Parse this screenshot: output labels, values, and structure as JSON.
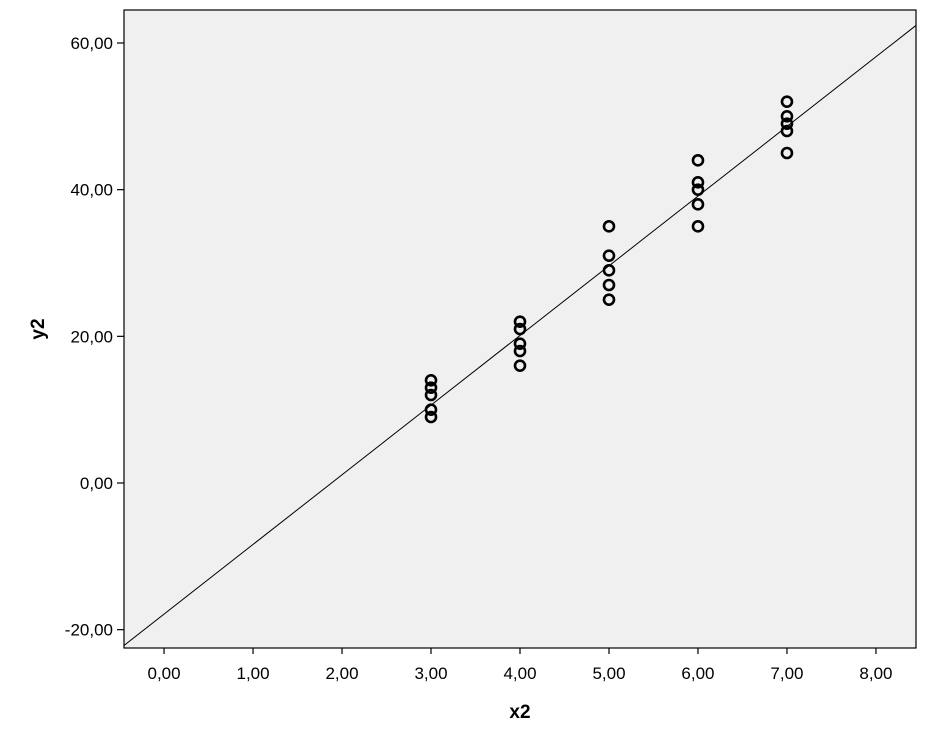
{
  "chart_data": {
    "type": "scatter",
    "title": "",
    "xlabel": "x2",
    "ylabel": "y2",
    "xlim": [
      -0.45,
      8.45
    ],
    "ylim": [
      -22.5,
      64.5
    ],
    "x_ticks": [
      0,
      1,
      2,
      3,
      4,
      5,
      6,
      7,
      8
    ],
    "x_tick_labels": [
      "0,00",
      "1,00",
      "2,00",
      "3,00",
      "4,00",
      "5,00",
      "6,00",
      "7,00",
      "8,00"
    ],
    "y_ticks": [
      -20,
      0,
      20,
      40,
      60
    ],
    "y_tick_labels": [
      "-20,00",
      "0,00",
      "20,00",
      "40,00",
      "60,00"
    ],
    "grid": false,
    "background_color": "#f0f0f0",
    "marker": "open-circle",
    "points": [
      {
        "x": 3,
        "y": 14
      },
      {
        "x": 3,
        "y": 13
      },
      {
        "x": 3,
        "y": 12
      },
      {
        "x": 3,
        "y": 10
      },
      {
        "x": 3,
        "y": 9
      },
      {
        "x": 4,
        "y": 22
      },
      {
        "x": 4,
        "y": 21
      },
      {
        "x": 4,
        "y": 19
      },
      {
        "x": 4,
        "y": 18
      },
      {
        "x": 4,
        "y": 16
      },
      {
        "x": 5,
        "y": 35
      },
      {
        "x": 5,
        "y": 31
      },
      {
        "x": 5,
        "y": 29
      },
      {
        "x": 5,
        "y": 27
      },
      {
        "x": 5,
        "y": 25
      },
      {
        "x": 6,
        "y": 44
      },
      {
        "x": 6,
        "y": 41
      },
      {
        "x": 6,
        "y": 40
      },
      {
        "x": 6,
        "y": 38
      },
      {
        "x": 6,
        "y": 35
      },
      {
        "x": 7,
        "y": 52
      },
      {
        "x": 7,
        "y": 50
      },
      {
        "x": 7,
        "y": 49
      },
      {
        "x": 7,
        "y": 48
      },
      {
        "x": 7,
        "y": 45
      }
    ],
    "fit_line": {
      "slope": 9.5,
      "intercept": -17.88
    }
  }
}
